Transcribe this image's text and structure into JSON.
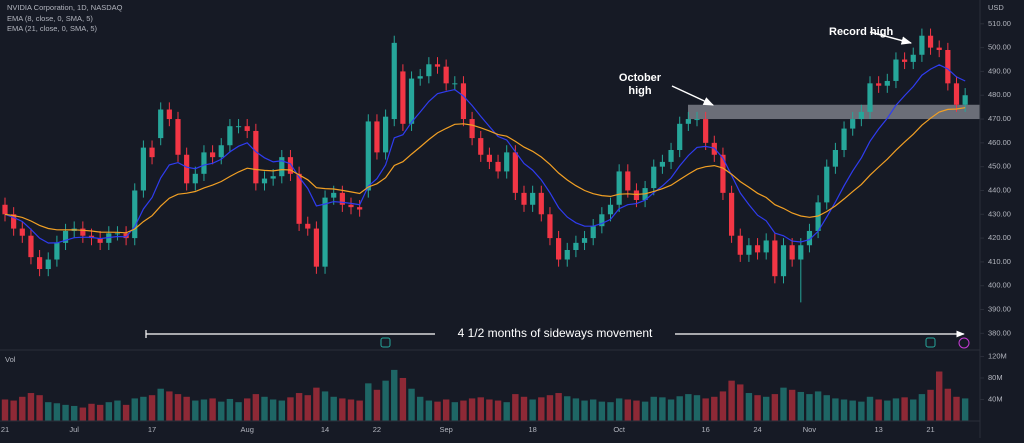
{
  "chart_data": {
    "type": "candlestick",
    "title": "NVIDIA Corporation, 1D, NASDAQ",
    "currency": "USD",
    "volume_label": "Vol",
    "indicators": [
      {
        "label": "EMA (8, close, 0, SMA, 5)",
        "period": 8,
        "color": "#2f3cf0"
      },
      {
        "label": "EMA (21, close, 0, SMA, 5)",
        "period": 21,
        "color": "#f2a024"
      }
    ],
    "up_color": "#26a69a",
    "down_color": "#f23645",
    "categories": [
      "21",
      null,
      null,
      null,
      null,
      null,
      null,
      null,
      "Jul",
      null,
      null,
      null,
      null,
      null,
      null,
      null,
      null,
      "17",
      null,
      null,
      null,
      null,
      null,
      null,
      null,
      null,
      null,
      null,
      "Aug",
      null,
      null,
      null,
      null,
      null,
      null,
      null,
      null,
      "14",
      null,
      null,
      null,
      null,
      null,
      "22",
      null,
      null,
      null,
      null,
      null,
      null,
      null,
      "Sep",
      null,
      null,
      null,
      null,
      null,
      null,
      null,
      null,
      null,
      "18",
      null,
      null,
      null,
      null,
      null,
      null,
      null,
      null,
      null,
      "Oct",
      null,
      null,
      null,
      null,
      null,
      null,
      null,
      null,
      null,
      "16",
      null,
      null,
      null,
      null,
      null,
      "24",
      null,
      null,
      null,
      null,
      null,
      "Nov",
      null,
      null,
      null,
      null,
      null,
      null,
      null,
      "13",
      null,
      null,
      null,
      null,
      null,
      "21",
      null,
      null,
      null,
      null
    ],
    "open": [
      434,
      430,
      424,
      421,
      412,
      407,
      411,
      418,
      423,
      424,
      421,
      420,
      418,
      422,
      422,
      420,
      440,
      458,
      462,
      474,
      470,
      455,
      443,
      447,
      456,
      454,
      459,
      467,
      467,
      465,
      443,
      445,
      446,
      454,
      447,
      426,
      424,
      408,
      437,
      439,
      434,
      433,
      440,
      469,
      456,
      470,
      490,
      468,
      487,
      488,
      493,
      492,
      485,
      485,
      470,
      462,
      455,
      452,
      448,
      456,
      439,
      434,
      439,
      430,
      420,
      411,
      415,
      418,
      420,
      425,
      430,
      434,
      448,
      440,
      436,
      441,
      450,
      452,
      457,
      468,
      470,
      470,
      460,
      455,
      439,
      421,
      413,
      417,
      414,
      419,
      404,
      417,
      411,
      417,
      423,
      435,
      450,
      457,
      466,
      470,
      473,
      485,
      484,
      486,
      495,
      494,
      497,
      505,
      500,
      499,
      485,
      476
    ],
    "high": [
      437,
      433,
      427,
      424,
      415,
      414,
      421,
      426,
      427,
      427,
      424,
      423,
      425,
      425,
      425,
      443,
      461,
      461,
      477,
      477,
      473,
      458,
      450,
      459,
      459,
      462,
      470,
      470,
      470,
      468,
      448,
      449,
      457,
      457,
      450,
      429,
      427,
      440,
      442,
      442,
      437,
      436,
      472,
      472,
      474,
      505,
      493,
      490,
      491,
      496,
      496,
      495,
      488,
      488,
      473,
      465,
      458,
      455,
      459,
      459,
      442,
      442,
      442,
      433,
      423,
      418,
      421,
      423,
      428,
      433,
      437,
      451,
      451,
      443,
      444,
      453,
      455,
      460,
      471,
      473,
      473,
      473,
      463,
      458,
      442,
      424,
      420,
      420,
      422,
      422,
      420,
      420,
      420,
      426,
      438,
      453,
      460,
      469,
      473,
      476,
      488,
      488,
      489,
      498,
      498,
      500,
      508,
      508,
      503,
      502,
      488,
      483
    ],
    "low": [
      427,
      421,
      418,
      409,
      404,
      404,
      408,
      415,
      420,
      418,
      417,
      415,
      415,
      419,
      417,
      417,
      437,
      451,
      459,
      467,
      452,
      440,
      440,
      444,
      451,
      451,
      456,
      464,
      462,
      440,
      440,
      442,
      443,
      444,
      423,
      421,
      405,
      405,
      434,
      431,
      430,
      429,
      437,
      453,
      453,
      467,
      465,
      465,
      484,
      485,
      489,
      482,
      482,
      467,
      459,
      452,
      449,
      445,
      445,
      436,
      431,
      431,
      427,
      417,
      408,
      408,
      412,
      415,
      417,
      422,
      427,
      431,
      437,
      433,
      433,
      438,
      447,
      449,
      454,
      465,
      467,
      457,
      452,
      436,
      418,
      410,
      410,
      411,
      411,
      401,
      401,
      408,
      393,
      414,
      420,
      432,
      447,
      454,
      463,
      467,
      470,
      481,
      481,
      483,
      491,
      491,
      494,
      497,
      496,
      482,
      473,
      473
    ],
    "close": [
      430,
      424,
      421,
      412,
      407,
      411,
      418,
      423,
      424,
      421,
      420,
      418,
      422,
      422,
      420,
      440,
      458,
      454,
      474,
      470,
      455,
      443,
      447,
      456,
      454,
      459,
      467,
      467,
      465,
      443,
      445,
      446,
      454,
      447,
      426,
      424,
      408,
      437,
      439,
      434,
      433,
      432,
      469,
      456,
      471,
      502,
      468,
      487,
      488,
      493,
      492,
      485,
      485,
      470,
      462,
      455,
      452,
      448,
      456,
      439,
      434,
      439,
      430,
      420,
      411,
      415,
      418,
      420,
      425,
      430,
      434,
      448,
      440,
      436,
      441,
      450,
      452,
      457,
      468,
      470,
      470,
      460,
      455,
      439,
      421,
      413,
      417,
      414,
      419,
      404,
      417,
      411,
      417,
      423,
      435,
      450,
      457,
      466,
      470,
      473,
      485,
      484,
      486,
      495,
      494,
      497,
      505,
      500,
      499,
      485,
      476,
      480
    ],
    "volume": [
      40,
      38,
      45,
      52,
      48,
      35,
      33,
      30,
      28,
      25,
      32,
      30,
      35,
      38,
      30,
      42,
      45,
      48,
      60,
      55,
      50,
      45,
      38,
      40,
      42,
      36,
      41,
      35,
      42,
      50,
      45,
      40,
      38,
      44,
      52,
      48,
      62,
      55,
      45,
      42,
      40,
      38,
      70,
      58,
      75,
      95,
      80,
      60,
      45,
      38,
      36,
      40,
      35,
      38,
      42,
      44,
      40,
      38,
      35,
      50,
      45,
      40,
      44,
      48,
      52,
      46,
      42,
      38,
      40,
      36,
      35,
      42,
      40,
      38,
      36,
      45,
      44,
      40,
      46,
      50,
      48,
      42,
      45,
      55,
      75,
      68,
      52,
      48,
      45,
      50,
      62,
      58,
      54,
      50,
      55,
      48,
      42,
      40,
      38,
      36,
      45,
      40,
      38,
      42,
      44,
      40,
      50,
      58,
      92,
      60,
      45,
      42
    ],
    "ylim": [
      373,
      520
    ],
    "yticks": [
      {
        "value": 380,
        "label": "380.00"
      },
      {
        "value": 390,
        "label": "390.00"
      },
      {
        "value": 400,
        "label": "400.00"
      },
      {
        "value": 410,
        "label": "410.00"
      },
      {
        "value": 420,
        "label": "420.00"
      },
      {
        "value": 430,
        "label": "430.00"
      },
      {
        "value": 440,
        "label": "440.00"
      },
      {
        "value": 450,
        "label": "450.00"
      },
      {
        "value": 460,
        "label": "460.00"
      },
      {
        "value": 470,
        "label": "470.00"
      },
      {
        "value": 480,
        "label": "480.00"
      },
      {
        "value": 490,
        "label": "490.00"
      },
      {
        "value": 500,
        "label": "500.00"
      },
      {
        "value": 510,
        "label": "510.00"
      }
    ],
    "y2lim": [
      0,
      132
    ],
    "y2ticks": [
      {
        "value": 40,
        "label": "40M"
      },
      {
        "value": 80,
        "label": "80M"
      },
      {
        "value": 120,
        "label": "120M"
      }
    ],
    "highlight": {
      "low": 470,
      "high": 476
    },
    "annotations": {
      "record": "Record high",
      "october": [
        "October",
        "high"
      ],
      "sideways": "4 1/2 months of sideways movement"
    }
  }
}
